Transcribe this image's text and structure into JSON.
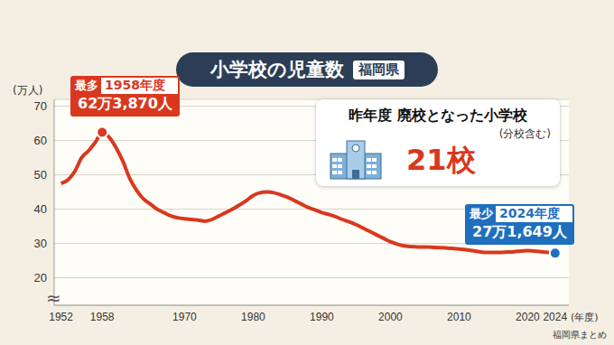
{
  "chart_data": {
    "type": "line",
    "title": "小学校の児童数",
    "subtitle": "福岡県",
    "y_label": "(万人)",
    "x_label": "(年度)",
    "source": "福岡県まとめ",
    "y_break": "≈",
    "x": [
      1952,
      1953,
      1954,
      1955,
      1956,
      1957,
      1958,
      1959,
      1960,
      1961,
      1962,
      1963,
      1964,
      1965,
      1966,
      1967,
      1968,
      1969,
      1970,
      1971,
      1972,
      1973,
      1974,
      1975,
      1976,
      1977,
      1978,
      1979,
      1980,
      1981,
      1982,
      1983,
      1984,
      1985,
      1986,
      1987,
      1988,
      1989,
      1990,
      1991,
      1992,
      1993,
      1994,
      1995,
      1996,
      1997,
      1998,
      1999,
      2000,
      2001,
      2002,
      2003,
      2004,
      2005,
      2006,
      2007,
      2008,
      2009,
      2010,
      2011,
      2012,
      2013,
      2014,
      2015,
      2016,
      2017,
      2018,
      2019,
      2020,
      2021,
      2022,
      2023,
      2024
    ],
    "values": [
      47.5,
      48.5,
      51,
      55,
      57,
      59.5,
      62.387,
      61,
      58,
      54,
      49,
      45.5,
      43,
      41.5,
      40,
      39,
      38,
      37.5,
      37.2,
      37,
      36.8,
      36.5,
      37,
      38,
      39,
      40,
      41.2,
      42.5,
      44,
      44.8,
      45,
      44.8,
      44.2,
      43.5,
      42.5,
      41.5,
      40.5,
      39.8,
      39,
      38.5,
      37.8,
      37,
      36.3,
      35.5,
      34.5,
      33.5,
      32.5,
      31.5,
      30.5,
      29.8,
      29.3,
      29.1,
      29,
      29,
      28.9,
      28.8,
      28.7,
      28.6,
      28.4,
      28.2,
      27.9,
      27.6,
      27.4,
      27.4,
      27.4,
      27.5,
      27.6,
      27.8,
      27.9,
      27.8,
      27.6,
      27.4,
      27.1649
    ],
    "color": "#d9381e",
    "xlim": [
      1951,
      2026
    ],
    "xticks": [
      1952,
      1958,
      1970,
      1980,
      1990,
      2000,
      2010,
      2020,
      2024
    ],
    "ylim": [
      12,
      72
    ],
    "yticks": [
      20,
      30,
      40,
      50,
      60,
      70
    ],
    "grid": true,
    "annotations": [
      {
        "badge": "最多",
        "label": "1958年度",
        "text": "62万3,870人",
        "x": 1958,
        "color": "#d9381e"
      },
      {
        "badge": "最少",
        "label": "2024年度",
        "text": "27万1,649人",
        "x": 2024,
        "color": "#1f6fbf"
      }
    ],
    "callout": {
      "title": "昨年度 廃校となった小学校",
      "note": "(分校含む)",
      "value": "21校"
    }
  }
}
